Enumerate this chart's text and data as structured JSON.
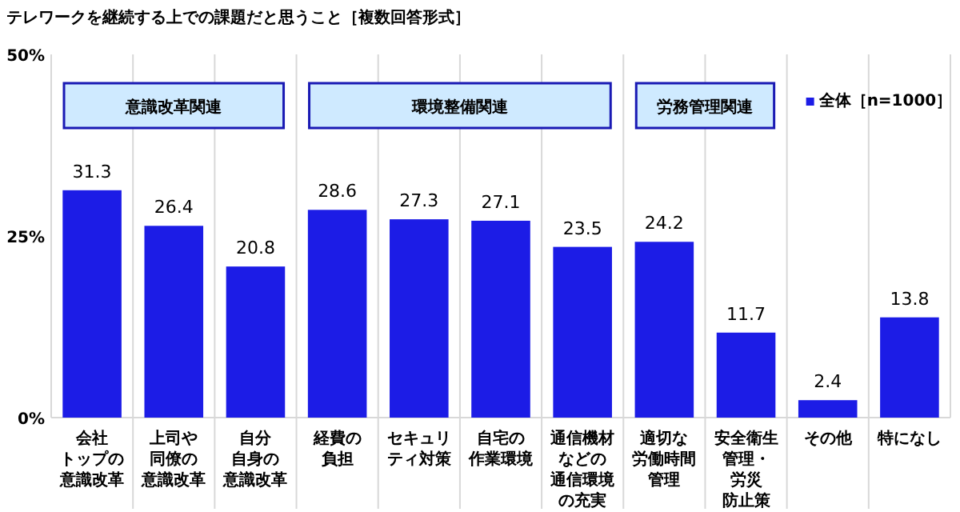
{
  "chart_data": {
    "type": "bar",
    "title": "テレワークを継続する上での課題だと思うこと［複数回答形式］",
    "categories": [
      "会社トップの意識改革",
      "上司や同僚の意識改革",
      "自分自身の意識改革",
      "経費の負担",
      "セキュリティ対策",
      "自宅の作業環境",
      "通信機材などの通信環境の充実",
      "適切な労働時間管理",
      "安全衛生管理・労災防止策",
      "その他",
      "特になし"
    ],
    "series": [
      {
        "name": "全体［n=1000］",
        "color": "#1c1ce6",
        "values": [
          31.3,
          26.4,
          20.8,
          28.6,
          27.3,
          27.1,
          23.5,
          24.2,
          11.7,
          2.4,
          13.8
        ]
      }
    ],
    "ylim": [
      0,
      50
    ],
    "yticks": [
      {
        "value": 0,
        "label": "0%"
      },
      {
        "value": 25,
        "label": "25%"
      },
      {
        "value": 50,
        "label": "50%"
      }
    ],
    "grid": "x",
    "legend": "top right",
    "data_labels": true,
    "annotations": [
      "意識改革関連",
      "環境整備関連",
      "労務管理関連"
    ]
  }
}
